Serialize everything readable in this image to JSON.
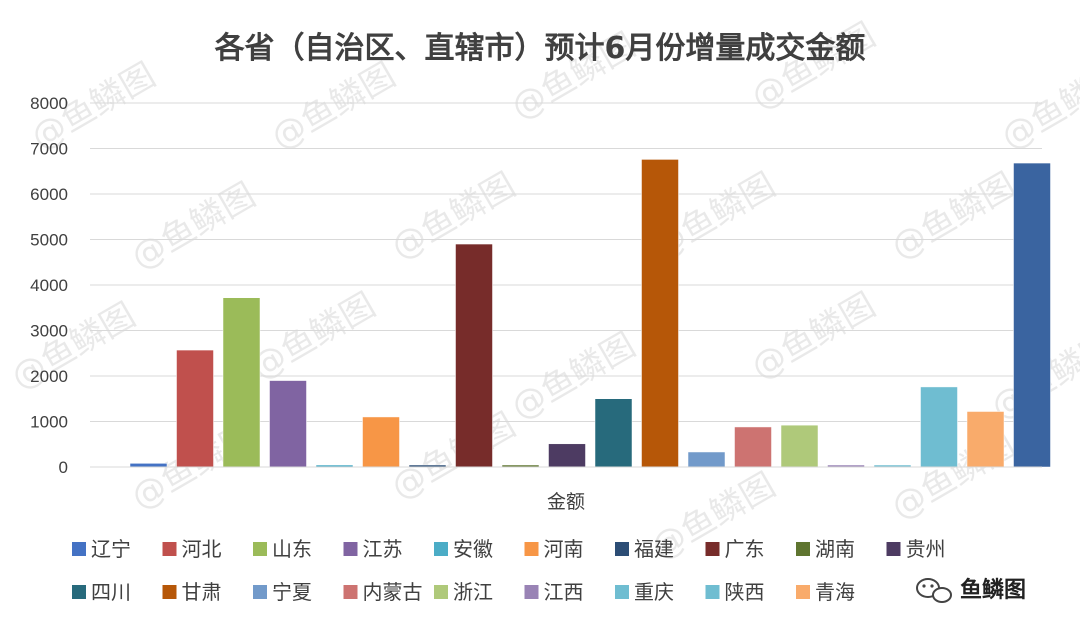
{
  "chart_data": {
    "type": "bar",
    "title": "各省（自治区、直辖市）预计6月份增量成交金额",
    "xlabel": "金额",
    "ylabel": "",
    "ylim": [
      0,
      8000
    ],
    "yticks": [
      0,
      1000,
      2000,
      3000,
      4000,
      5000,
      6000,
      7000,
      8000
    ],
    "grid": true,
    "legend_position": "bottom",
    "categories": [
      "金额"
    ],
    "series": [
      {
        "name": "辽宁",
        "values": [
          80
        ],
        "color": "#4472C4"
      },
      {
        "name": "河北",
        "values": [
          2570
        ],
        "color": "#C0504D"
      },
      {
        "name": "山东",
        "values": [
          3720
        ],
        "color": "#9BBB59"
      },
      {
        "name": "江苏",
        "values": [
          1900
        ],
        "color": "#8064A2"
      },
      {
        "name": "安徽",
        "values": [
          40
        ],
        "color": "#4BACC6"
      },
      {
        "name": "河南",
        "values": [
          1100
        ],
        "color": "#F79646"
      },
      {
        "name": "福建",
        "values": [
          40
        ],
        "color": "#2C4D75"
      },
      {
        "name": "广东",
        "values": [
          4900
        ],
        "color": "#772C2A"
      },
      {
        "name": "湖南",
        "values": [
          20
        ],
        "color": "#5F7530"
      },
      {
        "name": "贵州",
        "values": [
          510
        ],
        "color": "#4D3B62"
      },
      {
        "name": "四川",
        "values": [
          1500
        ],
        "color": "#276A7C"
      },
      {
        "name": "甘肃",
        "values": [
          6760
        ],
        "color": "#B65708"
      },
      {
        "name": "宁夏",
        "values": [
          330
        ],
        "color": "#729ACA"
      },
      {
        "name": "内蒙古",
        "values": [
          880
        ],
        "color": "#CD7371"
      },
      {
        "name": "浙江",
        "values": [
          920
        ],
        "color": "#AFC97A"
      },
      {
        "name": "江西",
        "values": [
          10
        ],
        "color": "#9983B5"
      },
      {
        "name": "重庆",
        "values": [
          30
        ],
        "color": "#6FBDD1"
      },
      {
        "name": "陕西",
        "values": [
          1760
        ],
        "color": "#6FBDD1"
      },
      {
        "name": "青海",
        "values": [
          1220
        ],
        "color": "#F9AB6B"
      },
      {
        "name": "",
        "values": [
          6680
        ],
        "color": "#3A64A0"
      }
    ],
    "watermark_text": "@鱼鳞图",
    "badge_text": "鱼鳞图",
    "badge_icon": "wechat-icon"
  }
}
